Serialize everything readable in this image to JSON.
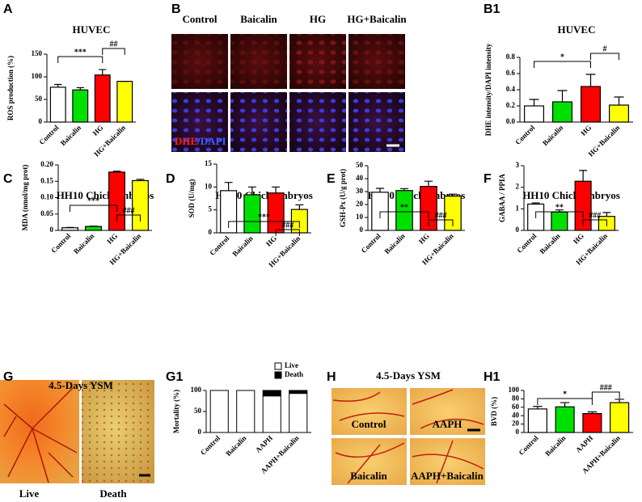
{
  "panel_labels": [
    "A",
    "B",
    "B1",
    "C",
    "D",
    "E",
    "F",
    "G",
    "G1",
    "H",
    "H1"
  ],
  "images": {
    "B": {
      "columns": [
        "Control",
        "Baicalin",
        "HG",
        "HG+Baicalin"
      ],
      "stain": [
        "DHE",
        "/DAPI"
      ]
    },
    "G": {
      "title": "4.5-Days YSM",
      "labels": [
        "Live",
        "Death"
      ]
    },
    "H": {
      "title": "4.5-Days YSM",
      "labels": [
        "Control",
        "AAPH",
        "Baicalin",
        "AAPH+Baicalin"
      ]
    }
  },
  "chart_data": [
    {
      "type": "bar",
      "title": "HUVEC",
      "y_label": "ROS production (%)",
      "categories": [
        "Control",
        "Baicalin",
        "HG",
        "HG+Baicalin"
      ],
      "values": [
        77,
        71,
        104,
        90
      ],
      "errors": [
        6,
        5,
        12,
        0
      ],
      "colors": [
        "#ffffff",
        "#00e000",
        "#ff0000",
        "#ffff00"
      ],
      "ylim": [
        0,
        150
      ],
      "yticks": [
        0,
        50,
        100,
        150
      ],
      "annotations": [
        "***",
        "##"
      ]
    },
    {
      "type": "bar",
      "title": "HUVEC",
      "y_label": "DHE intensity/DAPI intensity",
      "categories": [
        "Control",
        "Baicalin",
        "HG",
        "HG+Baicalin"
      ],
      "values": [
        0.2,
        0.25,
        0.44,
        0.21
      ],
      "errors": [
        0.08,
        0.14,
        0.15,
        0.1
      ],
      "colors": [
        "#ffffff",
        "#00e000",
        "#ff0000",
        "#ffff00"
      ],
      "ylim": [
        0,
        0.8
      ],
      "yticks": [
        {
          "value": 0,
          "label": "0.0"
        },
        0.2,
        0.4,
        0.6,
        0.8
      ],
      "annotations": [
        "*",
        "#"
      ]
    },
    {
      "type": "bar",
      "title": "HH10 Chick embryos",
      "y_label": "MDA (nmol/mg prot)",
      "categories": [
        "Control",
        "Baicalin",
        "HG",
        "HG+Baicalin"
      ],
      "values": [
        0.008,
        0.012,
        0.178,
        0.152
      ],
      "errors": [
        0.001,
        0.001,
        0.003,
        0.004
      ],
      "colors": [
        "#ffffff",
        "#00e000",
        "#ff0000",
        "#ffff00"
      ],
      "ylim": [
        0,
        0.2
      ],
      "yticks": [
        0,
        0.05,
        {
          "value": 0.1,
          "label": "0.10"
        },
        0.15,
        {
          "value": 0.2,
          "label": "0.20"
        }
      ],
      "annotations": [
        "***",
        "###"
      ]
    },
    {
      "type": "bar",
      "title": "HH10 Chick embryos",
      "y_label": "SOD (U/mg)",
      "categories": [
        "Control",
        "Baicalin",
        "HG",
        "HG+Baicalin"
      ],
      "values": [
        9.2,
        8.3,
        8.7,
        5.1
      ],
      "errors": [
        1.8,
        1.7,
        1.3,
        1.0
      ],
      "colors": [
        "#ffffff",
        "#00e000",
        "#ff0000",
        "#ffff00"
      ],
      "ylim": [
        0,
        15
      ],
      "yticks": [
        0,
        5,
        10,
        15
      ],
      "annotations": [
        "***",
        "###"
      ]
    },
    {
      "type": "bar",
      "title": "HH10 Chick embryos",
      "y_label": "GSH-Px (U/g prot)",
      "categories": [
        "Control",
        "Baicalin",
        "HG",
        "HG+Baicalin"
      ],
      "values": [
        29.5,
        30.8,
        34,
        26.5
      ],
      "errors": [
        3,
        1.5,
        4,
        1.5
      ],
      "colors": [
        "#ffffff",
        "#00e000",
        "#ff0000",
        "#ffff00"
      ],
      "ylim": [
        0,
        50
      ],
      "yticks": [
        0,
        10,
        20,
        30,
        40,
        50
      ],
      "annotations": [
        "**",
        "###"
      ]
    },
    {
      "type": "bar",
      "title": "HH10 Chick embryos",
      "y_label": "GABAA / PPIA",
      "categories": [
        "Control",
        "Baicalin",
        "HG",
        "HG+Baicalin"
      ],
      "values": [
        1.22,
        0.85,
        2.28,
        0.65
      ],
      "errors": [
        0.05,
        0.1,
        0.5,
        0.18
      ],
      "colors": [
        "#ffffff",
        "#00e000",
        "#ff0000",
        "#ffff00"
      ],
      "ylim": [
        0,
        3
      ],
      "yticks": [
        0,
        1,
        2,
        3
      ],
      "annotations": [
        "**",
        "###"
      ]
    },
    {
      "type": "stacked_bar",
      "y_label": "Mortality (%)",
      "categories": [
        "Control",
        "Baicalin",
        "AAPH",
        "AAPH+Baicalin"
      ],
      "series": [
        {
          "name": "Live",
          "color": "#ffffff",
          "values": [
            100,
            100,
            87,
            93
          ]
        },
        {
          "name": "Death",
          "color": "#000000",
          "values": [
            0,
            0,
            13,
            7
          ]
        }
      ],
      "ylim": [
        0,
        100
      ],
      "yticks": [
        0,
        50,
        100
      ],
      "legend": "top-right"
    },
    {
      "type": "bar",
      "y_label": "BVD (%)",
      "categories": [
        "Control",
        "Baicalin",
        "AAPH",
        "AAPH+Baicalin"
      ],
      "values": [
        56,
        61,
        45,
        71
      ],
      "errors": [
        6,
        10,
        4,
        8
      ],
      "colors": [
        "#ffffff",
        "#00e000",
        "#ff0000",
        "#ffff00"
      ],
      "ylim": [
        0,
        100
      ],
      "yticks": [
        0,
        20,
        40,
        60,
        80,
        100
      ],
      "annotations": [
        "*",
        "###"
      ]
    }
  ]
}
